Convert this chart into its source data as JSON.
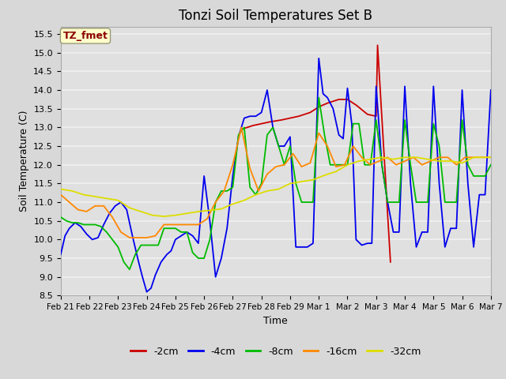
{
  "title": "Tonzi Soil Temperatures Set B",
  "xlabel": "Time",
  "ylabel": "Soil Temperature (C)",
  "ylim": [
    8.5,
    15.7
  ],
  "xlim": [
    0,
    15
  ],
  "background_color": "#d8d8d8",
  "plot_bg_color": "#e0e0e0",
  "grid_color": "#f0f0f0",
  "annotation_label": "TZ_fmet",
  "annotation_color": "#8b0000",
  "annotation_bg": "#ffffcc",
  "tick_labels": [
    "Feb 21",
    "Feb 22",
    "Feb 23",
    "Feb 24",
    "Feb 25",
    "Feb 26",
    "Feb 27",
    "Feb 28",
    "Feb 29",
    "Mar 1",
    "Mar 2",
    "Mar 3",
    "Mar 4",
    "Mar 5",
    "Mar 6",
    "Mar 7"
  ],
  "yticks": [
    8.5,
    9.0,
    9.5,
    10.0,
    10.5,
    11.0,
    11.5,
    12.0,
    12.5,
    13.0,
    13.5,
    14.0,
    14.5,
    15.0,
    15.5
  ],
  "series": {
    "neg2cm": {
      "color": "#cc0000",
      "label": "-2cm",
      "x": [
        6.3,
        6.7,
        7.0,
        7.3,
        7.7,
        8.0,
        8.3,
        8.7,
        9.0,
        9.3,
        9.7,
        10.0,
        10.3,
        10.7,
        11.0,
        11.05,
        11.5
      ],
      "y": [
        12.95,
        13.05,
        13.1,
        13.15,
        13.2,
        13.25,
        13.3,
        13.4,
        13.55,
        13.65,
        13.75,
        13.75,
        13.6,
        13.35,
        13.3,
        15.2,
        9.4
      ]
    },
    "neg4cm": {
      "color": "#0000ee",
      "label": "-4cm",
      "x": [
        0.0,
        0.15,
        0.3,
        0.5,
        0.7,
        0.9,
        1.1,
        1.3,
        1.5,
        1.7,
        1.9,
        2.1,
        2.3,
        2.5,
        2.7,
        2.85,
        3.0,
        3.15,
        3.3,
        3.5,
        3.7,
        3.85,
        4.0,
        4.2,
        4.4,
        4.6,
        4.8,
        5.0,
        5.2,
        5.4,
        5.6,
        5.8,
        6.0,
        6.2,
        6.4,
        6.6,
        6.8,
        7.0,
        7.2,
        7.4,
        7.6,
        7.8,
        8.0,
        8.2,
        8.4,
        8.6,
        8.8,
        9.0,
        9.15,
        9.3,
        9.5,
        9.7,
        9.85,
        10.0,
        10.15,
        10.3,
        10.5,
        10.7,
        10.85,
        11.0,
        11.2,
        11.4,
        11.6,
        11.8,
        12.0,
        12.2,
        12.4,
        12.6,
        12.8,
        13.0,
        13.2,
        13.4,
        13.6,
        13.8,
        14.0,
        14.2,
        14.4,
        14.6,
        14.8,
        15.0
      ],
      "y": [
        9.6,
        10.1,
        10.3,
        10.45,
        10.35,
        10.15,
        10.0,
        10.05,
        10.4,
        10.7,
        10.9,
        11.0,
        10.8,
        10.1,
        9.45,
        9.0,
        8.6,
        8.7,
        9.05,
        9.4,
        9.6,
        9.7,
        10.0,
        10.1,
        10.2,
        10.1,
        9.9,
        11.7,
        10.5,
        9.0,
        9.5,
        10.3,
        11.7,
        12.75,
        13.25,
        13.3,
        13.3,
        13.4,
        14.0,
        13.0,
        12.5,
        12.5,
        12.75,
        9.8,
        9.8,
        9.8,
        9.9,
        14.85,
        13.9,
        13.8,
        13.5,
        12.8,
        12.7,
        14.05,
        13.1,
        10.0,
        9.85,
        9.9,
        9.9,
        14.1,
        12.0,
        11.0,
        10.2,
        10.2,
        14.1,
        11.5,
        9.8,
        10.2,
        10.2,
        14.1,
        11.5,
        9.8,
        10.3,
        10.3,
        14.0,
        11.5,
        9.8,
        11.2,
        11.2,
        14.0
      ]
    },
    "neg8cm": {
      "color": "#00bb00",
      "label": "-8cm",
      "x": [
        0.0,
        0.2,
        0.4,
        0.6,
        0.8,
        1.0,
        1.2,
        1.4,
        1.6,
        1.8,
        2.0,
        2.2,
        2.4,
        2.6,
        2.8,
        3.0,
        3.2,
        3.4,
        3.6,
        3.8,
        4.0,
        4.2,
        4.4,
        4.6,
        4.8,
        5.0,
        5.2,
        5.4,
        5.6,
        5.8,
        6.0,
        6.2,
        6.4,
        6.6,
        6.8,
        7.0,
        7.2,
        7.4,
        7.6,
        7.8,
        8.0,
        8.2,
        8.4,
        8.6,
        8.8,
        9.0,
        9.2,
        9.4,
        9.6,
        9.8,
        10.0,
        10.2,
        10.4,
        10.6,
        10.8,
        11.0,
        11.2,
        11.4,
        11.6,
        11.8,
        12.0,
        12.2,
        12.4,
        12.6,
        12.8,
        13.0,
        13.2,
        13.4,
        13.6,
        13.8,
        14.0,
        14.2,
        14.4,
        14.6,
        14.8,
        15.0
      ],
      "y": [
        10.6,
        10.5,
        10.45,
        10.45,
        10.4,
        10.4,
        10.4,
        10.35,
        10.2,
        10.0,
        9.8,
        9.4,
        9.2,
        9.6,
        9.85,
        9.85,
        9.85,
        9.85,
        10.3,
        10.3,
        10.3,
        10.2,
        10.2,
        9.65,
        9.5,
        9.5,
        10.0,
        11.0,
        11.3,
        11.3,
        11.4,
        12.8,
        13.0,
        11.4,
        11.2,
        11.5,
        12.8,
        13.0,
        12.5,
        12.0,
        12.5,
        11.5,
        11.0,
        11.0,
        11.0,
        13.8,
        12.8,
        12.0,
        12.0,
        12.0,
        12.0,
        13.1,
        13.1,
        12.0,
        12.0,
        13.2,
        12.0,
        11.0,
        11.0,
        11.0,
        13.2,
        12.0,
        11.0,
        11.0,
        11.0,
        13.1,
        12.5,
        11.0,
        11.0,
        11.0,
        13.2,
        12.0,
        11.7,
        11.7,
        11.7,
        12.0
      ]
    },
    "neg16cm": {
      "color": "#ff8800",
      "label": "-16cm",
      "x": [
        0.0,
        0.3,
        0.6,
        0.9,
        1.2,
        1.5,
        1.8,
        2.1,
        2.4,
        2.7,
        3.0,
        3.3,
        3.6,
        3.9,
        4.2,
        4.5,
        4.8,
        5.1,
        5.4,
        5.7,
        6.0,
        6.3,
        6.6,
        6.9,
        7.2,
        7.5,
        7.8,
        8.1,
        8.4,
        8.7,
        9.0,
        9.3,
        9.6,
        9.9,
        10.2,
        10.5,
        10.8,
        11.1,
        11.4,
        11.7,
        12.0,
        12.3,
        12.6,
        12.9,
        13.2,
        13.5,
        13.8,
        14.1,
        14.4,
        14.7,
        15.0
      ],
      "y": [
        11.2,
        11.0,
        10.8,
        10.75,
        10.9,
        10.9,
        10.6,
        10.2,
        10.05,
        10.05,
        10.05,
        10.1,
        10.4,
        10.4,
        10.4,
        10.4,
        10.4,
        10.55,
        11.0,
        11.3,
        12.0,
        13.0,
        11.9,
        11.3,
        11.75,
        11.95,
        12.0,
        12.3,
        11.95,
        12.05,
        12.85,
        12.5,
        11.95,
        12.0,
        12.5,
        12.2,
        12.0,
        12.1,
        12.2,
        12.0,
        12.1,
        12.2,
        12.0,
        12.1,
        12.2,
        12.2,
        12.0,
        12.2,
        12.2,
        12.2,
        12.2
      ]
    },
    "neg32cm": {
      "color": "#dddd00",
      "label": "-32cm",
      "x": [
        0.0,
        0.4,
        0.8,
        1.2,
        1.6,
        2.0,
        2.4,
        2.8,
        3.2,
        3.6,
        4.0,
        4.4,
        4.8,
        5.2,
        5.6,
        6.0,
        6.4,
        6.8,
        7.2,
        7.6,
        8.0,
        8.4,
        8.8,
        9.2,
        9.6,
        10.0,
        10.4,
        10.8,
        11.2,
        11.6,
        12.0,
        12.4,
        12.8,
        13.2,
        13.6,
        14.0,
        14.4,
        14.8,
        15.0
      ],
      "y": [
        11.35,
        11.3,
        11.2,
        11.15,
        11.1,
        11.05,
        10.85,
        10.75,
        10.65,
        10.62,
        10.65,
        10.7,
        10.75,
        10.78,
        10.82,
        10.95,
        11.05,
        11.2,
        11.3,
        11.35,
        11.5,
        11.55,
        11.6,
        11.72,
        11.82,
        12.0,
        12.1,
        12.15,
        12.2,
        12.15,
        12.2,
        12.2,
        12.15,
        12.1,
        12.1,
        12.05,
        12.2,
        12.2,
        12.2
      ]
    }
  }
}
